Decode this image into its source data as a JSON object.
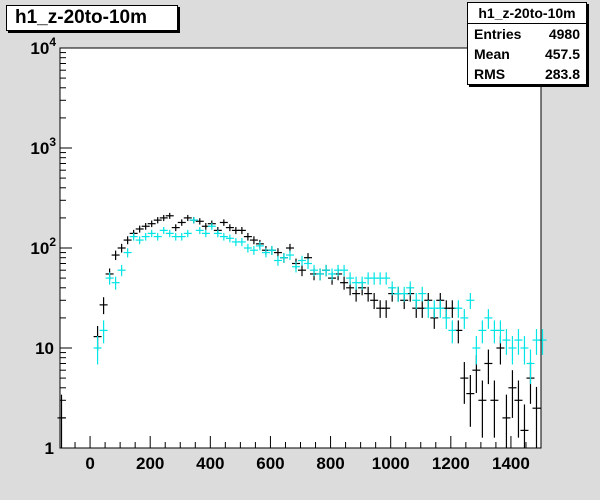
{
  "title": "h1_z-20to-10m",
  "stats": {
    "title": "h1_z-20to-10m",
    "rows": [
      {
        "label": "Entries",
        "value": "4980"
      },
      {
        "label": "Mean",
        "value": "457.5"
      },
      {
        "label": "RMS",
        "value": "283.8"
      }
    ]
  },
  "chart_data": {
    "type": "scatter",
    "title": "h1_z-20to-10m",
    "xlabel": "",
    "ylabel": "",
    "xlim": [
      -100,
      1500
    ],
    "ylim": [
      1,
      10000
    ],
    "y_scale": "log",
    "x_ticks": [
      "0",
      "200",
      "400",
      "600",
      "800",
      "1000",
      "1200",
      "1400"
    ],
    "y_ticks": [
      {
        "base": "10",
        "exp": "4"
      },
      {
        "base": "10",
        "exp": "3"
      },
      {
        "base": "10",
        "exp": "2"
      },
      {
        "base": "10",
        "exp": ""
      },
      {
        "base": "1",
        "exp": ""
      }
    ],
    "colors": {
      "series_a": "#000000",
      "series_b": "#00e5e5",
      "frame": "#000000",
      "background": "#ffffff"
    },
    "series": [
      {
        "color": "black",
        "x": [
          -95,
          25,
          45,
          65,
          85,
          105,
          125,
          145,
          165,
          185,
          205,
          225,
          245,
          265,
          285,
          305,
          325,
          345,
          365,
          385,
          405,
          425,
          445,
          465,
          485,
          505,
          525,
          545,
          565,
          585,
          605,
          625,
          645,
          665,
          685,
          705,
          725,
          745,
          765,
          785,
          805,
          825,
          845,
          865,
          885,
          905,
          925,
          945,
          965,
          985,
          1005,
          1025,
          1045,
          1065,
          1085,
          1105,
          1125,
          1145,
          1165,
          1185,
          1205,
          1225,
          1245,
          1265,
          1285,
          1305,
          1325,
          1345,
          1365,
          1385,
          1405,
          1425,
          1445,
          1465,
          1485
        ],
        "y": [
          2,
          13,
          27,
          55,
          85,
          100,
          120,
          140,
          155,
          165,
          175,
          190,
          200,
          210,
          160,
          180,
          200,
          190,
          185,
          165,
          175,
          150,
          180,
          160,
          150,
          150,
          130,
          120,
          110,
          95,
          95,
          90,
          80,
          100,
          70,
          60,
          80,
          55,
          55,
          60,
          50,
          55,
          45,
          40,
          35,
          40,
          35,
          30,
          25,
          25,
          35,
          35,
          30,
          35,
          25,
          25,
          30,
          20,
          30,
          25,
          25,
          15,
          5,
          3.5,
          6,
          3,
          7,
          3,
          10,
          2,
          4,
          3,
          1.5,
          5,
          2.5
        ]
      },
      {
        "color": "cyan",
        "x": [
          25,
          45,
          65,
          85,
          105,
          125,
          145,
          165,
          185,
          205,
          225,
          245,
          265,
          285,
          305,
          325,
          345,
          365,
          385,
          405,
          425,
          445,
          465,
          485,
          505,
          525,
          545,
          565,
          585,
          605,
          625,
          645,
          665,
          685,
          705,
          725,
          745,
          765,
          785,
          805,
          825,
          845,
          865,
          885,
          905,
          925,
          945,
          965,
          985,
          1005,
          1025,
          1045,
          1065,
          1085,
          1105,
          1125,
          1145,
          1165,
          1185,
          1205,
          1225,
          1245,
          1265,
          1285,
          1305,
          1325,
          1345,
          1365,
          1385,
          1405,
          1425,
          1445,
          1465,
          1485,
          1505
        ],
        "y": [
          10,
          15,
          50,
          45,
          60,
          90,
          130,
          120,
          130,
          140,
          130,
          150,
          140,
          130,
          130,
          140,
          190,
          150,
          140,
          165,
          140,
          130,
          125,
          115,
          115,
          100,
          95,
          105,
          90,
          95,
          75,
          80,
          85,
          65,
          75,
          70,
          60,
          55,
          60,
          55,
          60,
          60,
          50,
          45,
          45,
          50,
          50,
          50,
          50,
          40,
          35,
          35,
          40,
          30,
          35,
          25,
          25,
          25,
          20,
          15,
          25,
          20,
          30,
          10,
          15,
          20,
          15,
          15,
          12,
          10,
          12,
          10,
          7,
          12,
          12
        ]
      }
    ]
  }
}
